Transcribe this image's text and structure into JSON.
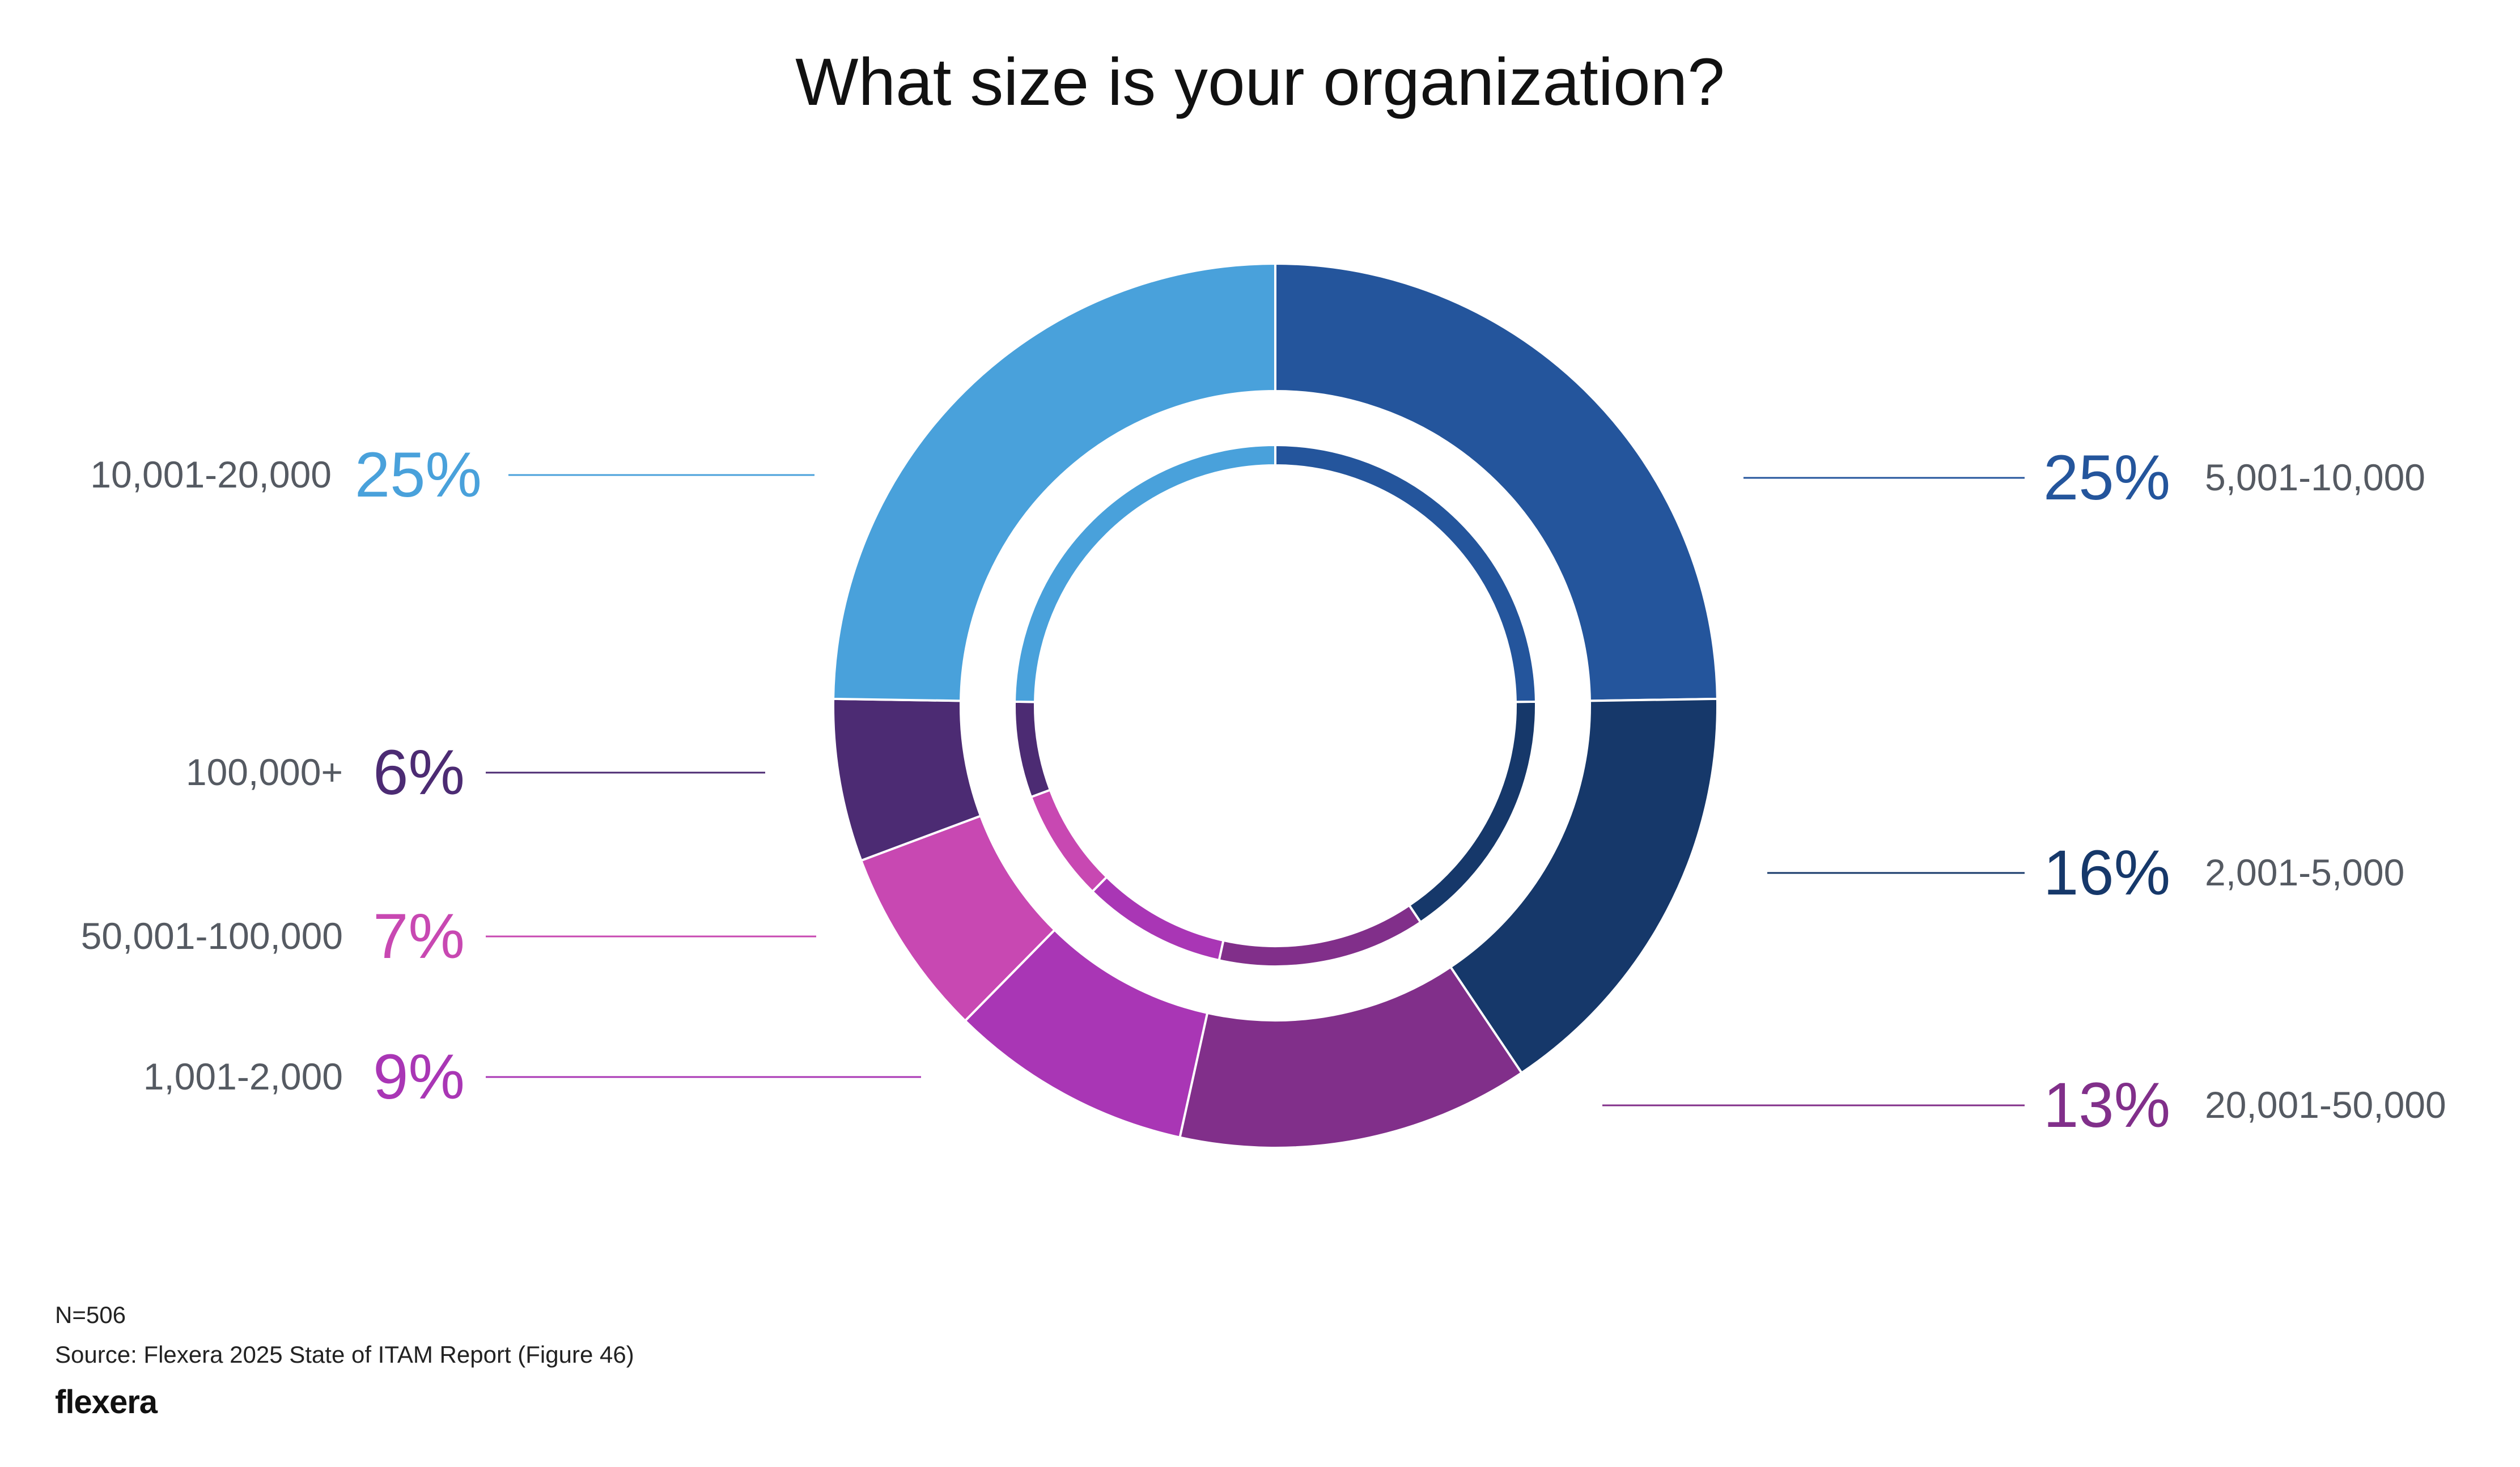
{
  "chart_data": {
    "type": "pie",
    "title": "What size is your organization?",
    "slices": [
      {
        "label": "5,001-10,000",
        "pct_label": "25%",
        "value": 25,
        "color": "#24559c"
      },
      {
        "label": "2,001-5,000",
        "pct_label": "16%",
        "value": 16,
        "color": "#16386a"
      },
      {
        "label": "20,001-50,000",
        "pct_label": "13%",
        "value": 13,
        "color": "#812f8a"
      },
      {
        "label": "1,001-2,000",
        "pct_label": "9%",
        "value": 9,
        "color": "#a936b5"
      },
      {
        "label": "50,001-100,000",
        "pct_label": "7%",
        "value": 7,
        "color": "#c848b2"
      },
      {
        "label": "100,000+",
        "pct_label": "6%",
        "value": 6,
        "color": "#4c2b73"
      },
      {
        "label": "10,001-20,000",
        "pct_label": "25%",
        "value": 25,
        "color": "#49a1db"
      }
    ]
  },
  "footer": {
    "n": "N=506",
    "source": "Source: Flexera 2025 State of ITAM Report (Figure 46)",
    "logo": "flexera"
  }
}
